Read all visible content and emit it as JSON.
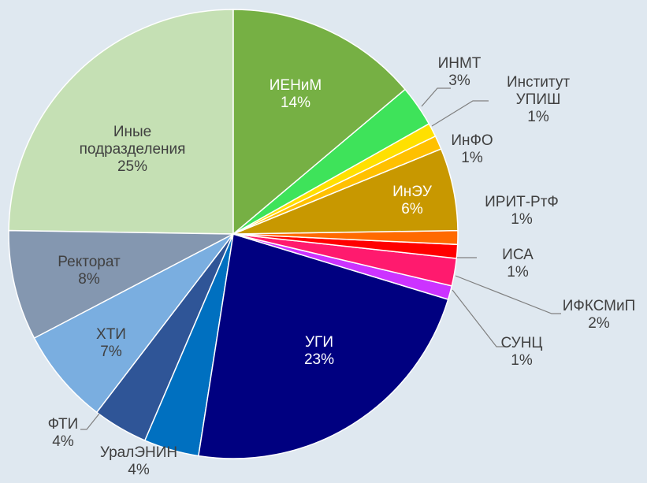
{
  "chart_data": {
    "type": "pie",
    "categories": [
      "ИЕНиМ",
      "ИНМТ",
      "Институт УПИШ",
      "ИнФО",
      "ИнЭУ",
      "ИРИТ-РтФ",
      "ИСА",
      "ИФКСМиП",
      "СУНЦ",
      "УГИ",
      "УралЭНИН",
      "ФТИ",
      "ХТИ",
      "Ректорат",
      "Иные подразделения"
    ],
    "values": [
      14,
      3,
      1,
      1,
      6,
      1,
      1,
      2,
      1,
      23,
      4,
      4,
      7,
      8,
      25
    ],
    "value_labels": [
      "14%",
      "3%",
      "1%",
      "1%",
      "6%",
      "1%",
      "1%",
      "2%",
      "1%",
      "23%",
      "4%",
      "4%",
      "7%",
      "8%",
      "25%"
    ],
    "colors": [
      "#76b044",
      "#3ee35a",
      "#ffe000",
      "#ffc000",
      "#c89800",
      "#ff6a00",
      "#ff0000",
      "#ff1a6e",
      "#cc33ff",
      "#000080",
      "#0070c0",
      "#2f5597",
      "#7aaee0",
      "#8497b0",
      "#c5e0b4"
    ]
  }
}
